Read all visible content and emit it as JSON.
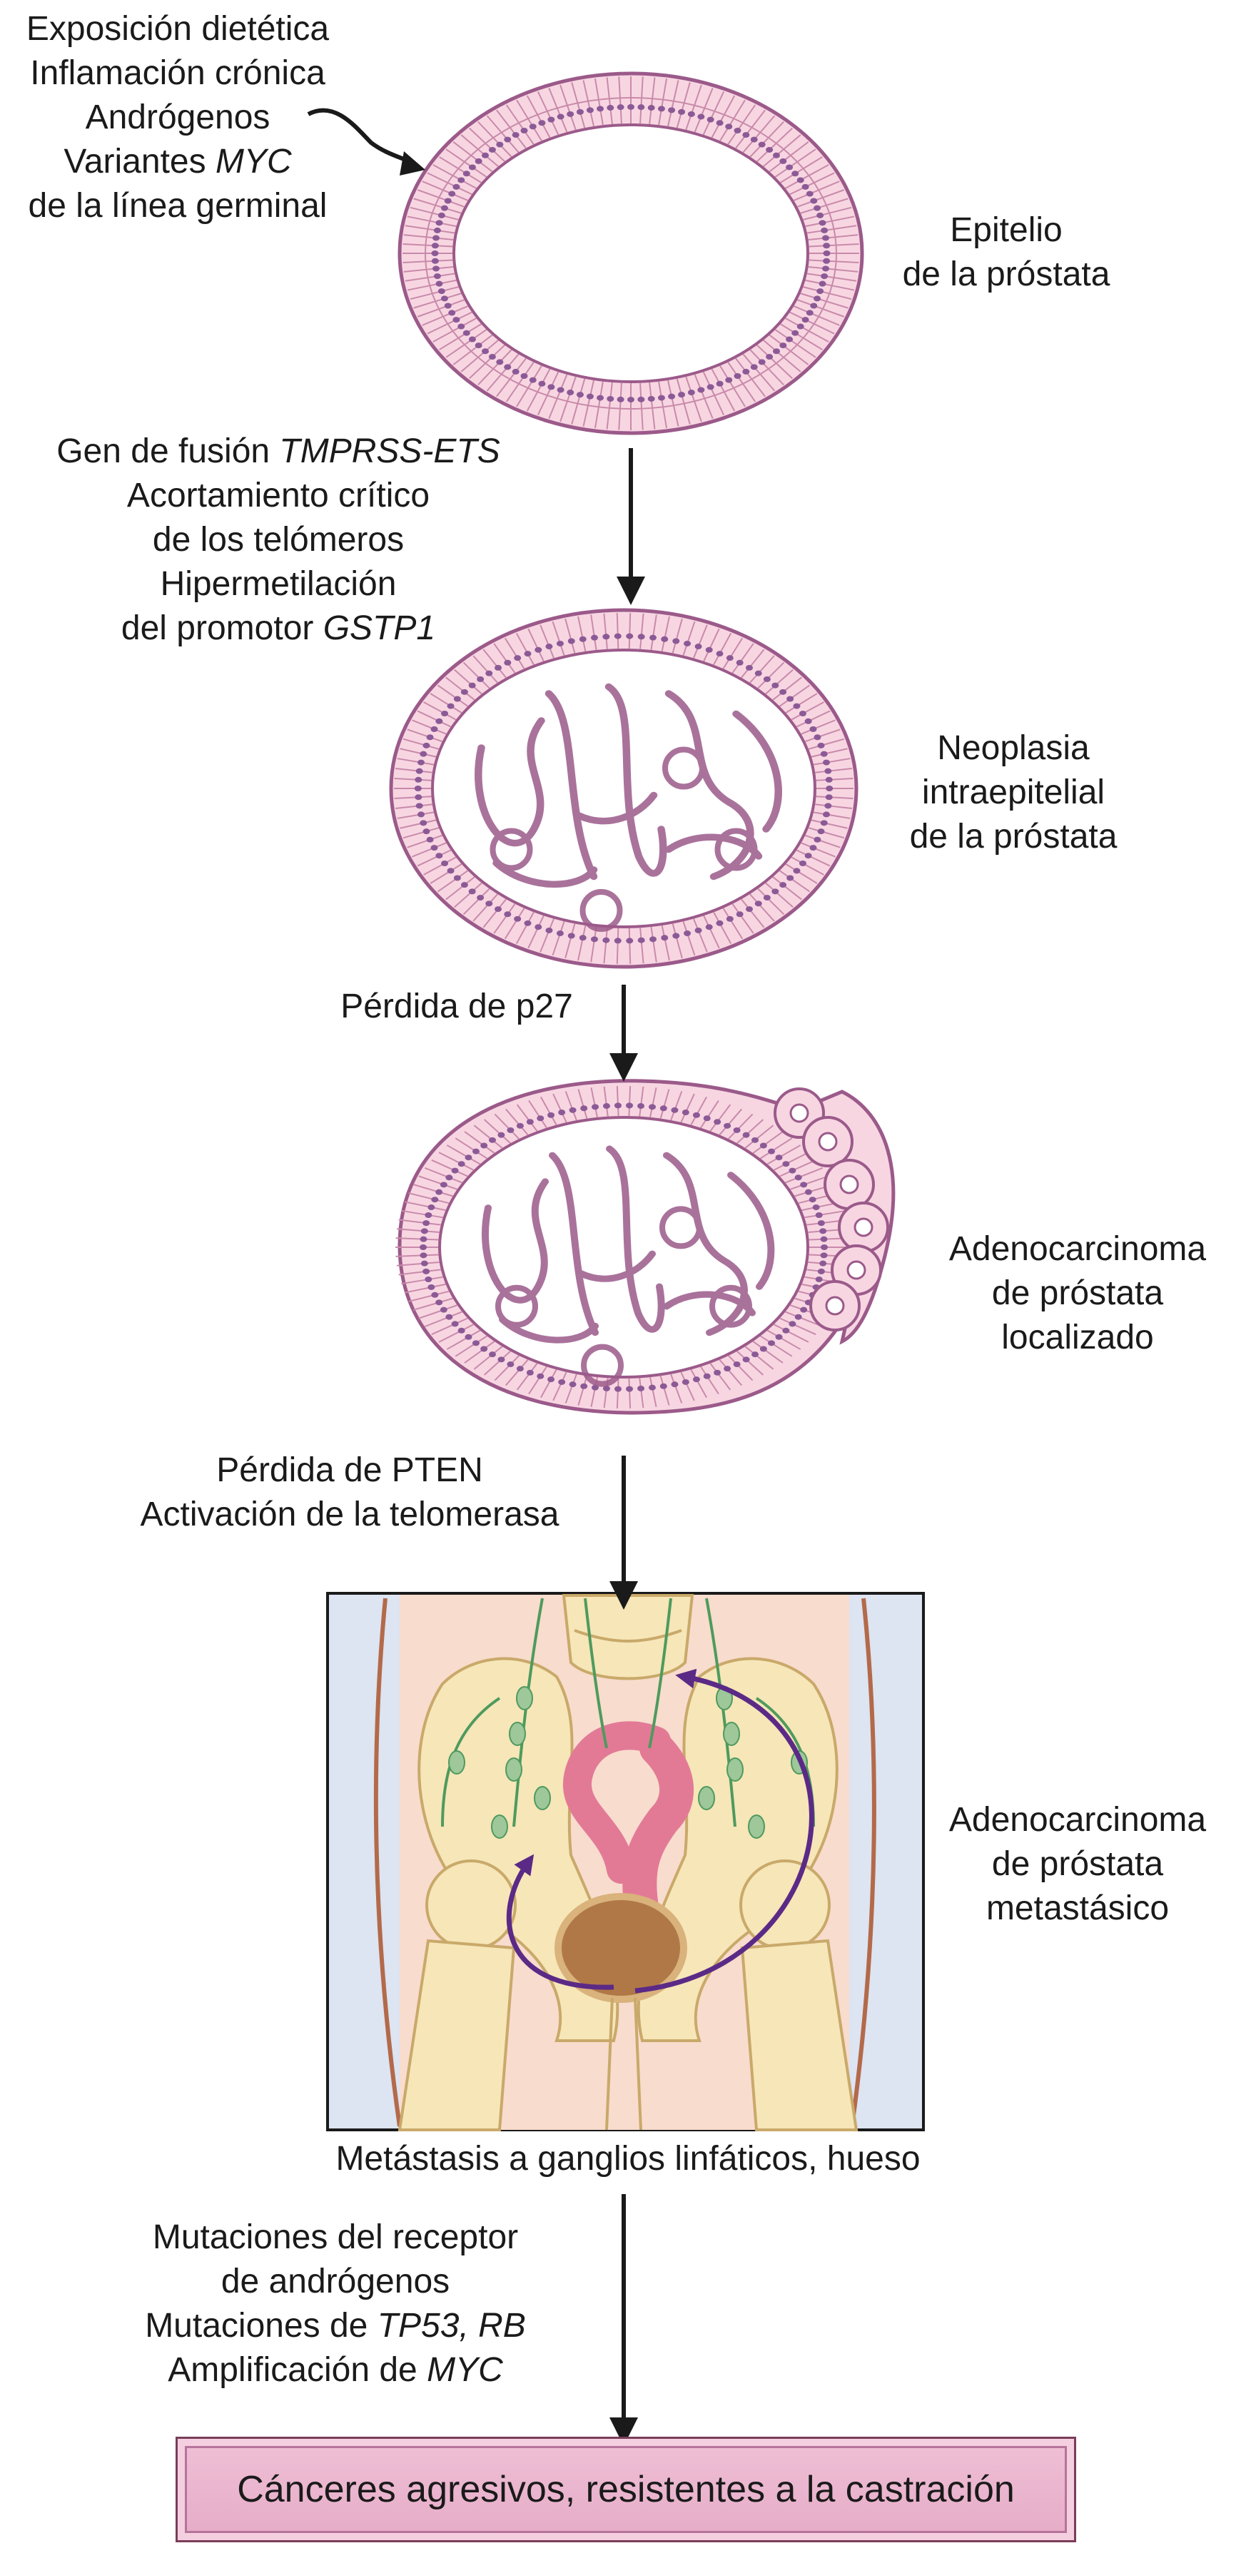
{
  "stages": {
    "epithelium": [
      "Epitelio",
      "de la próstata"
    ],
    "pin": [
      "Neoplasia",
      "intraepitelial",
      "de la próstata"
    ],
    "localized": [
      "Adenocarcinoma",
      "de próstata",
      "localizado"
    ],
    "metastatic": [
      "Adenocarcinoma",
      "de próstata",
      "metastásico"
    ]
  },
  "factors": {
    "initial": [
      {
        "pre": "Exposición dietética",
        "it": ""
      },
      {
        "pre": "Inflamación crónica",
        "it": ""
      },
      {
        "pre": "Andrógenos",
        "it": ""
      },
      {
        "pre": "Variantes ",
        "it": "MYC"
      },
      {
        "pre": "de la línea germinal",
        "it": ""
      }
    ],
    "step1": [
      {
        "pre": "Gen de fusión ",
        "it": "TMPRSS-ETS"
      },
      {
        "pre": "Acortamiento crítico",
        "it": ""
      },
      {
        "pre": "de los telómeros",
        "it": ""
      },
      {
        "pre": "Hipermetilación",
        "it": ""
      },
      {
        "pre": "del promotor ",
        "it": "GSTP1"
      }
    ],
    "step2": [
      {
        "pre": "Pérdida de p27",
        "it": ""
      }
    ],
    "step3": [
      {
        "pre": "Pérdida de PTEN",
        "it": ""
      },
      {
        "pre": "Activación de la telomerasa",
        "it": ""
      }
    ],
    "step4": [
      {
        "pre": "Mutaciones del receptor",
        "it": ""
      },
      {
        "pre": "de andrógenos",
        "it": ""
      },
      {
        "pre": "Mutaciones de ",
        "it": "TP53, RB"
      },
      {
        "pre": "Amplificación de ",
        "it": "MYC"
      }
    ]
  },
  "metastasis_caption": "Metástasis a ganglios linfáticos, hueso",
  "final_box": "Cánceres agresivos, resistentes a la castración",
  "colors": {
    "epithelium_fill": "#f7d6e2",
    "nucleus": "#8b5a96",
    "outline": "#9b5a8a",
    "arrow": "#1a1a1a",
    "metastasis_arrow": "#5b2a86",
    "lymph": "#4f9a5e",
    "box_fill": "#e9b4cd"
  }
}
